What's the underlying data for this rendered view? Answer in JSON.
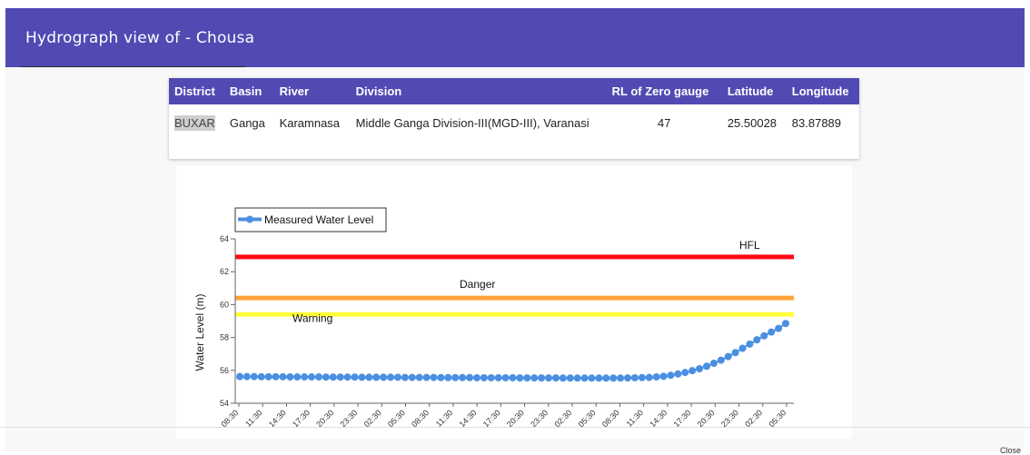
{
  "header": {
    "title": "Hydrograph view of - Chousa"
  },
  "info_table": {
    "headers": [
      "District",
      "Basin",
      "River",
      "Division",
      "RL of Zero gauge",
      "Latitude",
      "Longitude"
    ],
    "row": {
      "district": "BUXAR",
      "basin": "Ganga",
      "river": "Karamnasa",
      "division": "Middle Ganga Division-III(MGD-III), Varanasi",
      "rl_zero_gauge": "47",
      "latitude": "25.50028",
      "longitude": "83.87889"
    }
  },
  "footer": {
    "close_label": "Close"
  },
  "chart_data": {
    "type": "line",
    "ylabel": "Water Level (m)",
    "ylim": [
      54,
      64
    ],
    "yticks": [
      "54",
      "56",
      "58",
      "60",
      "62",
      "64"
    ],
    "xtick_labels": [
      "08:30",
      "11:30",
      "14:30",
      "17:30",
      "20:30",
      "23:30",
      "02:30",
      "05:30",
      "08:30",
      "11:30",
      "14:30",
      "17:30",
      "20:30",
      "23:30",
      "02:30",
      "05:30",
      "08:30",
      "11:30",
      "14:30",
      "17:30",
      "20:30",
      "23:30",
      "02:30",
      "05:30"
    ],
    "legend": {
      "label": "Measured Water Level",
      "position": "top-left"
    },
    "series": [
      {
        "name": "Measured Water Level",
        "color": "#4a8fe2",
        "values": [
          55.62,
          55.62,
          55.62,
          55.61,
          55.61,
          55.61,
          55.61,
          55.6,
          55.6,
          55.6,
          55.6,
          55.6,
          55.59,
          55.59,
          55.59,
          55.59,
          55.59,
          55.58,
          55.58,
          55.58,
          55.58,
          55.58,
          55.58,
          55.57,
          55.57,
          55.57,
          55.57,
          55.57,
          55.56,
          55.56,
          55.56,
          55.56,
          55.56,
          55.55,
          55.55,
          55.55,
          55.55,
          55.55,
          55.55,
          55.54,
          55.54,
          55.54,
          55.54,
          55.54,
          55.54,
          55.53,
          55.53,
          55.53,
          55.53,
          55.53,
          55.53,
          55.53,
          55.53,
          55.53,
          55.54,
          55.55,
          55.56,
          55.57,
          55.6,
          55.64,
          55.7,
          55.78,
          55.87,
          55.98,
          56.1,
          56.25,
          56.43,
          56.62,
          56.84,
          57.08,
          57.34,
          57.6,
          57.86,
          58.1,
          58.33,
          58.55,
          58.85
        ]
      }
    ],
    "reference_lines": [
      {
        "label": "HFL",
        "value": 62.9,
        "color": "#ff0a14"
      },
      {
        "label": "Danger",
        "value": 60.4,
        "color": "#ffa33a"
      },
      {
        "label": "Warning",
        "value": 59.4,
        "color": "#ffff3a"
      }
    ]
  }
}
